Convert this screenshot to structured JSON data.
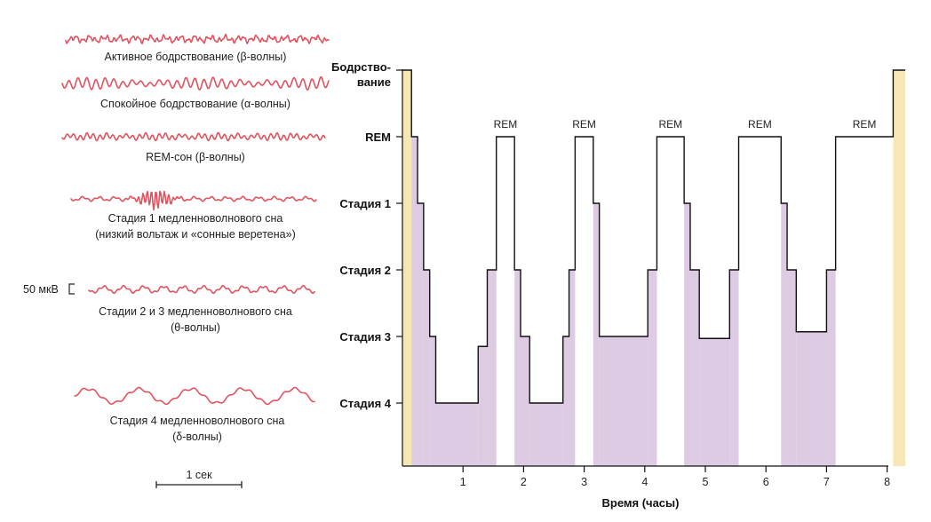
{
  "waves": [
    {
      "caption": [
        "Активное бодрствование (β-волны)"
      ]
    },
    {
      "caption": [
        "Спокойное бодрствование (α-волны)"
      ]
    },
    {
      "caption": [
        "REM-сон (β-волны)"
      ]
    },
    {
      "caption": [
        "Стадия 1 медленноволнового сна",
        "(низкий вольтаж и «сонные веретена»)"
      ]
    },
    {
      "caption": [
        "Стадии 2 и 3 медленноволнового сна",
        "(θ-волны)"
      ]
    },
    {
      "caption": [
        "Стадия 4 медленноволнового сна",
        "(δ-волны)"
      ]
    }
  ],
  "scale_voltage_label": "50 мкВ",
  "scale_time_label": "1 сек",
  "chart_data": {
    "type": "step-area",
    "xlabel": "Время (часы)",
    "x_ticks": [
      "1",
      "2",
      "3",
      "4",
      "5",
      "6",
      "7",
      "8"
    ],
    "xlim": [
      0,
      8.4
    ],
    "y_levels": [
      "Бодрство-\nвание",
      "REM",
      "Стадия 1",
      "Стадия 2",
      "Стадия 3",
      "Стадия 4"
    ],
    "y_level_values": [
      6,
      5,
      4,
      3,
      2,
      1
    ],
    "rem_label": "REM",
    "colors": {
      "sleep_fill": "#dccbe3",
      "wake_fill": "#f7e7b4",
      "line": "#111111"
    },
    "hypnogram": [
      {
        "x": 0.0,
        "y": 6
      },
      {
        "x": 0.15,
        "y": 5
      },
      {
        "x": 0.25,
        "y": 4
      },
      {
        "x": 0.35,
        "y": 3
      },
      {
        "x": 0.45,
        "y": 2
      },
      {
        "x": 0.55,
        "y": 1
      },
      {
        "x": 1.25,
        "y": 1.85
      },
      {
        "x": 1.4,
        "y": 3
      },
      {
        "x": 1.55,
        "y": 5
      },
      {
        "x": 1.85,
        "y": 3
      },
      {
        "x": 1.95,
        "y": 2
      },
      {
        "x": 2.1,
        "y": 1
      },
      {
        "x": 2.65,
        "y": 2
      },
      {
        "x": 2.75,
        "y": 3
      },
      {
        "x": 2.85,
        "y": 5
      },
      {
        "x": 3.15,
        "y": 4
      },
      {
        "x": 3.25,
        "y": 2
      },
      {
        "x": 4.05,
        "y": 3
      },
      {
        "x": 4.2,
        "y": 5
      },
      {
        "x": 4.65,
        "y": 4
      },
      {
        "x": 4.75,
        "y": 3
      },
      {
        "x": 4.9,
        "y": 1.97
      },
      {
        "x": 5.4,
        "y": 3
      },
      {
        "x": 5.55,
        "y": 5
      },
      {
        "x": 6.25,
        "y": 4
      },
      {
        "x": 6.35,
        "y": 3
      },
      {
        "x": 6.5,
        "y": 2.07
      },
      {
        "x": 7.0,
        "y": 3
      },
      {
        "x": 7.15,
        "y": 5
      },
      {
        "x": 8.1,
        "y": 6
      },
      {
        "x": 8.3,
        "y": 6
      }
    ],
    "rem_periods": [
      [
        1.55,
        1.85
      ],
      [
        2.85,
        3.15
      ],
      [
        4.2,
        4.65
      ],
      [
        5.55,
        6.25
      ],
      [
        7.15,
        8.1
      ]
    ],
    "wake_periods": [
      [
        0.0,
        0.15
      ],
      [
        8.1,
        8.3
      ]
    ]
  }
}
